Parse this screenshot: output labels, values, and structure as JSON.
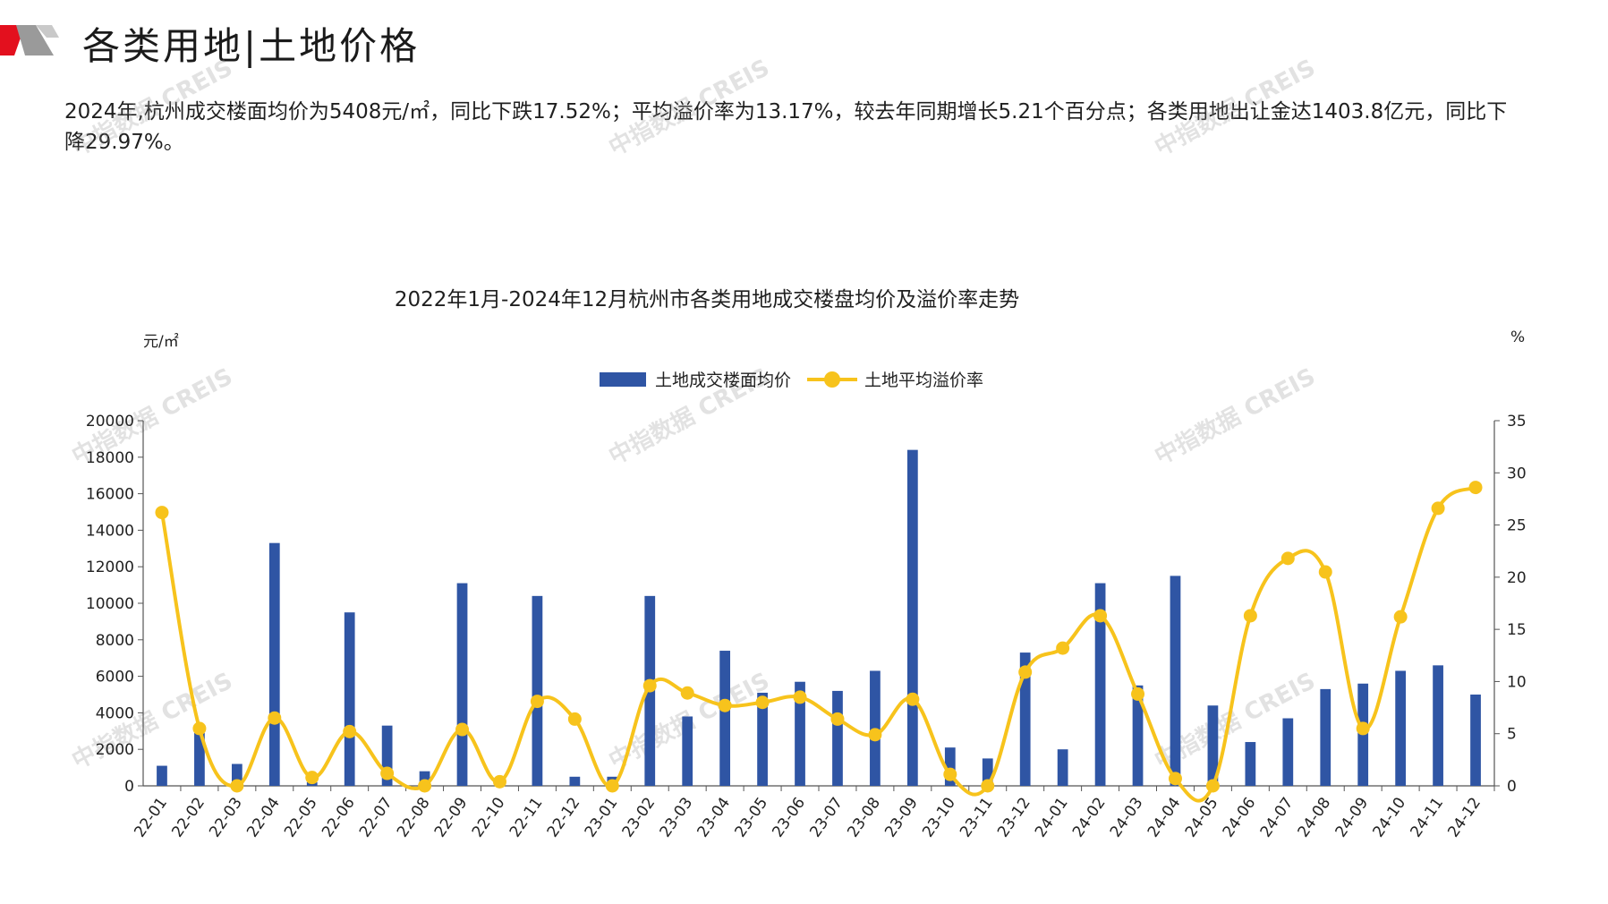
{
  "header": {
    "title": "各类用地|土地价格"
  },
  "summary": {
    "text": "2024年,杭州成交楼面均价为5408元/㎡，同比下跌17.52%；平均溢价率为13.17%，较去年同期增长5.21个百分点；各类用地出让金达1403.8亿元，同比下降29.97%。"
  },
  "watermark": {
    "text": "中指数据 CREIS"
  },
  "colors": {
    "bar": "#2f55a4",
    "line": "#f7c31c",
    "brand_red": "#e3101e"
  },
  "chart_data": {
    "type": "bar+line",
    "title": "2022年1月-2024年12月杭州市各类用地成交楼盘均价及溢价率走势",
    "y_left_unit": "元/㎡",
    "y_right_unit": "%",
    "y_left_lim": [
      0,
      20000
    ],
    "y_left_ticks": [
      "0",
      "2000",
      "4000",
      "6000",
      "8000",
      "10000",
      "12000",
      "14000",
      "16000",
      "18000",
      "20000"
    ],
    "y_right_lim": [
      0,
      35
    ],
    "y_right_ticks": [
      "0",
      "5",
      "10",
      "15",
      "20",
      "25",
      "30",
      "35"
    ],
    "legend_position": "top-center",
    "categories": [
      "22-01",
      "22-02",
      "22-03",
      "22-04",
      "22-05",
      "22-06",
      "22-07",
      "22-08",
      "22-09",
      "22-10",
      "22-11",
      "22-12",
      "23-01",
      "23-02",
      "23-03",
      "23-04",
      "23-05",
      "23-06",
      "23-07",
      "23-08",
      "23-09",
      "23-10",
      "23-11",
      "23-12",
      "24-01",
      "24-02",
      "24-03",
      "24-04",
      "24-05",
      "24-06",
      "24-07",
      "24-08",
      "24-09",
      "24-10",
      "24-11",
      "24-12"
    ],
    "series": [
      {
        "name": "土地成交楼面均价",
        "type": "bar",
        "axis": "left",
        "values": [
          1100,
          2900,
          1200,
          13300,
          200,
          9500,
          3300,
          800,
          11100,
          100,
          10400,
          500,
          500,
          10400,
          3800,
          7400,
          5100,
          5700,
          5200,
          6300,
          18400,
          2100,
          1500,
          7300,
          2000,
          11100,
          5500,
          11500,
          4400,
          2400,
          3700,
          5300,
          5600,
          6300,
          6600,
          5000
        ]
      },
      {
        "name": "土地平均溢价率",
        "type": "line",
        "axis": "right",
        "values": [
          26.2,
          5.5,
          0.0,
          6.5,
          0.8,
          5.2,
          1.2,
          0.0,
          5.4,
          0.4,
          8.1,
          6.4,
          0.0,
          9.6,
          8.9,
          7.7,
          8.0,
          8.5,
          6.4,
          4.9,
          8.3,
          1.1,
          0.0,
          10.9,
          13.2,
          16.3,
          8.8,
          0.7,
          0.0,
          16.3,
          21.8,
          20.5,
          5.5,
          16.2,
          26.6,
          28.6
        ]
      }
    ]
  }
}
